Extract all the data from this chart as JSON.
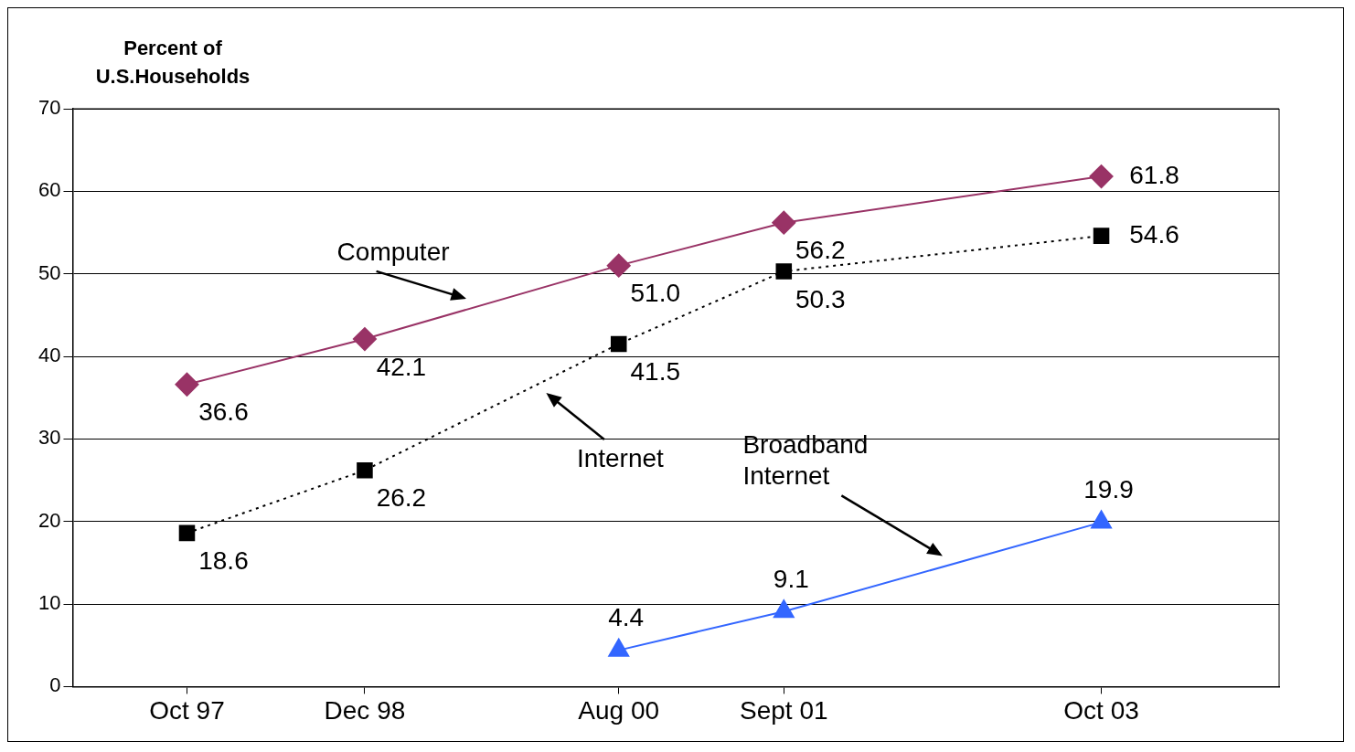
{
  "chart_data": {
    "type": "line",
    "ylabel": "Percent of U.S.Households",
    "x": [
      "1997-10",
      "1998-12",
      "2000-08",
      "2001-09",
      "2003-10"
    ],
    "xlim": [
      "1997-01",
      "2004-12"
    ],
    "xticks": [
      {
        "value": "1997-10",
        "label": "Oct 97"
      },
      {
        "value": "1998-12",
        "label": "Dec 98"
      },
      {
        "value": "2000-08",
        "label": "Aug 00"
      },
      {
        "value": "2001-09",
        "label": "Sept 01"
      },
      {
        "value": "2003-10",
        "label": "Oct 03"
      }
    ],
    "ylim": [
      0,
      70
    ],
    "yticks": [
      0,
      10,
      20,
      30,
      40,
      50,
      60,
      70
    ],
    "grid": "y",
    "series": [
      {
        "name": "Computer",
        "color": "#993366",
        "values": [
          36.6,
          42.1,
          51.0,
          56.2,
          61.8
        ],
        "value_labels": [
          "36.6",
          "42.1",
          "51.0",
          "56.2",
          "61.8"
        ],
        "marker": "diamond",
        "line_style": "solid"
      },
      {
        "name": "Internet",
        "color": "#000000",
        "values": [
          18.6,
          26.2,
          41.5,
          50.3,
          54.6
        ],
        "value_labels": [
          "18.6",
          "26.2",
          "41.5",
          "50.3",
          "54.6"
        ],
        "marker": "square",
        "line_style": "dotted"
      },
      {
        "name": "Broadband Internet",
        "color": "#3366ff",
        "values": [
          null,
          null,
          4.4,
          9.1,
          19.9
        ],
        "value_labels": [
          null,
          null,
          "4.4",
          "9.1",
          "19.9"
        ],
        "marker": "triangle",
        "line_style": "solid"
      }
    ]
  }
}
